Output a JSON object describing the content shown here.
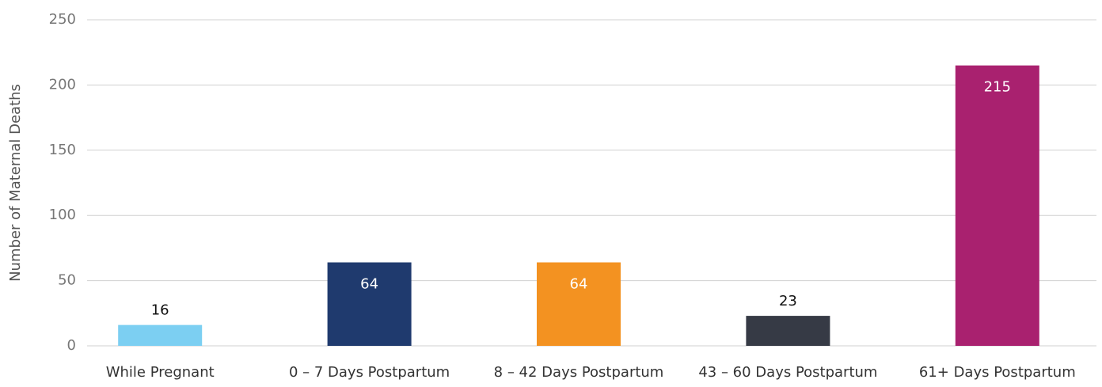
{
  "chart_data": {
    "type": "bar",
    "y_label": "Number of Maternal Deaths",
    "categories": [
      "While Pregnant",
      "0 – 7 Days Postpartum",
      "8 – 42 Days Postpartum",
      "43 – 60 Days Postpartum",
      "61+ Days Postpartum"
    ],
    "values": [
      16,
      64,
      64,
      23,
      215
    ],
    "colors": [
      "#7ccff2",
      "#1f3a6e",
      "#f39221",
      "#363a45",
      "#a9216f"
    ],
    "ylim": [
      0,
      250
    ],
    "yticks": [
      0,
      50,
      100,
      150,
      200,
      250
    ],
    "grid": true
  }
}
